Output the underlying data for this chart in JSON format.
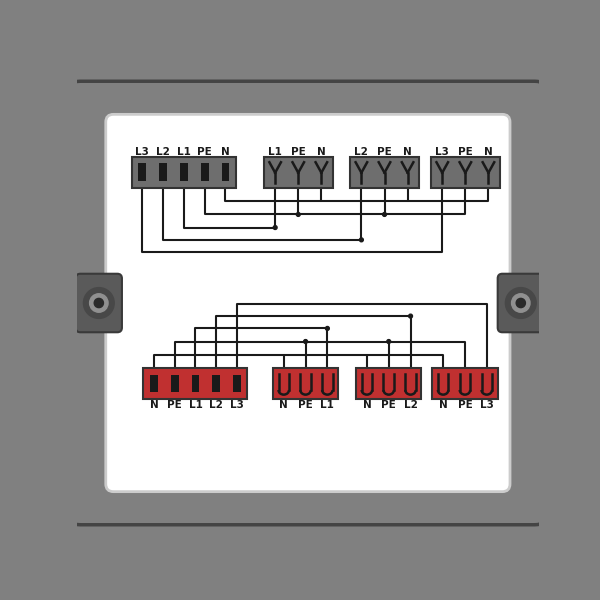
{
  "bg_outer": "#808080",
  "bg_inner": "#ffffff",
  "panel_edge": "#555555",
  "wire_color": "#1a1a1a",
  "text_color": "#1a1a1a",
  "dark_block_color": "#6e6e6e",
  "red_block_color": "#c03030",
  "slot_color": "#1a1a1a",
  "top_main_labels": [
    "L3",
    "L2",
    "L1",
    "PE",
    "N"
  ],
  "top_sub1_labels": [
    "L1",
    "PE",
    "N"
  ],
  "top_sub2_labels": [
    "L2",
    "PE",
    "N"
  ],
  "top_sub3_labels": [
    "L3",
    "PE",
    "N"
  ],
  "bot_main_labels": [
    "N",
    "PE",
    "L1",
    "L2",
    "L3"
  ],
  "bot_sub1_labels": [
    "N",
    "PE",
    "L1"
  ],
  "bot_sub2_labels": [
    "N",
    "PE",
    "L2"
  ],
  "bot_sub3_labels": [
    "N",
    "PE",
    "L3"
  ],
  "figsize": [
    6.0,
    6.0
  ],
  "dpi": 100
}
